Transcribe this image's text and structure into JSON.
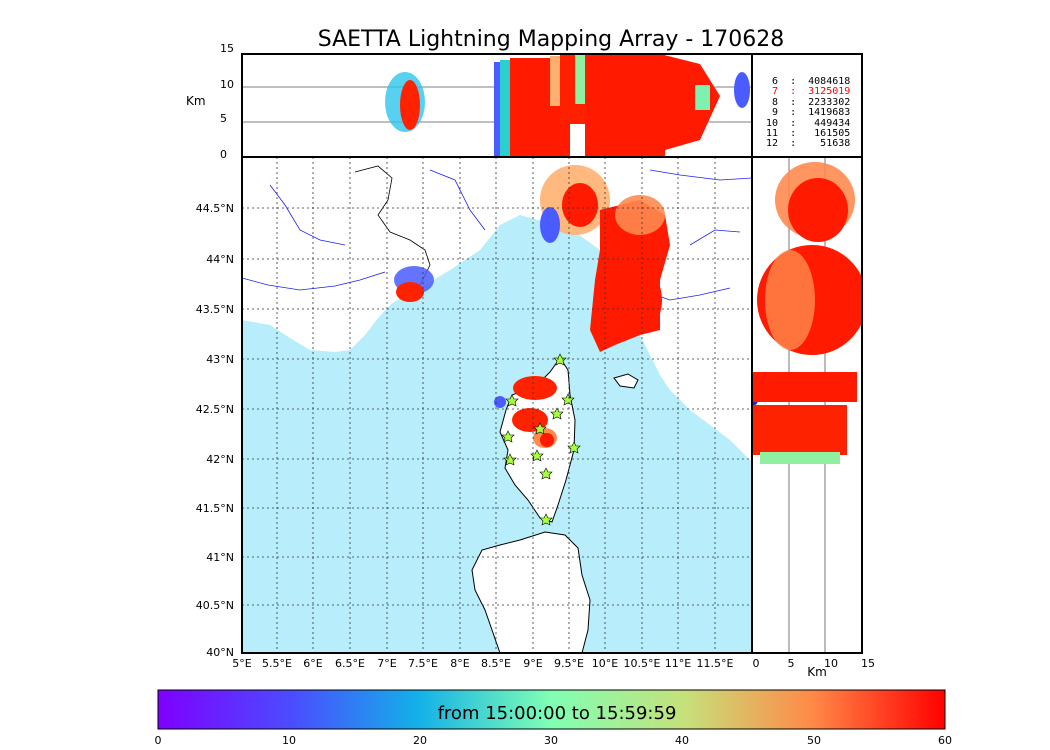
{
  "title": "SAETTA Lightning Mapping Array - 170628",
  "top_panel": {
    "ylabel": "Km",
    "yticks": [
      "0",
      "5",
      "10",
      "15"
    ]
  },
  "right_panel": {
    "xlabel": "Km",
    "xticks": [
      "0",
      "5",
      "10",
      "15"
    ]
  },
  "map": {
    "lon_ticks": [
      "5°E",
      "5.5°E",
      "6°E",
      "6.5°E",
      "7°E",
      "7.5°E",
      "8°E",
      "8.5°E",
      "9°E",
      "9.5°E",
      "10°E",
      "10.5°E",
      "11°E",
      "11.5°E"
    ],
    "lat_ticks": [
      "44.5°N",
      "44°N",
      "43.5°N",
      "43°N",
      "42.5°N",
      "42°N",
      "41.5°N",
      "41°N",
      "40.5°N",
      "40°N"
    ],
    "colors": {
      "sea": "#b8eefb",
      "land": "#ffffff",
      "rivers": "#2020ee",
      "station": "#a8ff3a"
    }
  },
  "legend": {
    "entries": [
      {
        "label": " 6  :  4084618",
        "color": "#000000"
      },
      {
        "label": " 7  :  3125019",
        "color": "#ff0000"
      },
      {
        "label": " 8  :  2233302",
        "color": "#000000"
      },
      {
        "label": " 9  :  1419683",
        "color": "#000000"
      },
      {
        "label": "10  :   449434",
        "color": "#000000"
      },
      {
        "label": "11  :   161505",
        "color": "#000000"
      },
      {
        "label": "12  :    51638",
        "color": "#000000"
      }
    ]
  },
  "colorbar": {
    "label": "from 15:00:00 to 15:59:59",
    "ticks": [
      "0",
      "10",
      "20",
      "30",
      "40",
      "50",
      "60"
    ]
  }
}
